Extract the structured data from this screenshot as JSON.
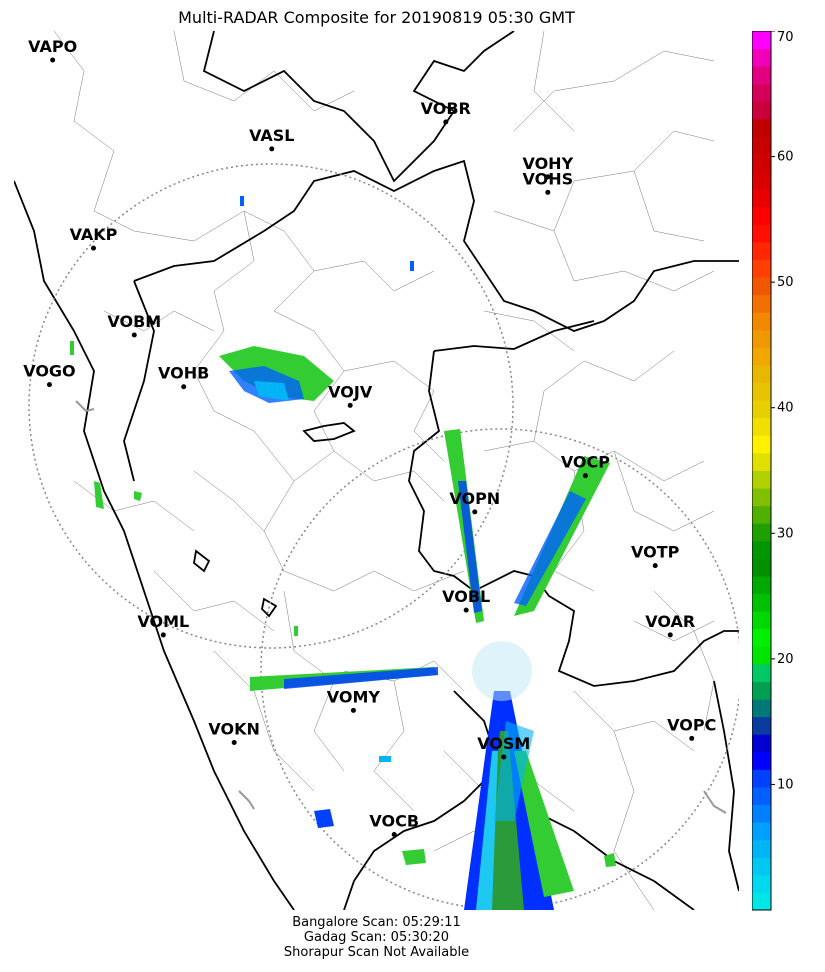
{
  "title": "Multi-RADAR Composite for 20190819 05:30 GMT",
  "stations": [
    {
      "id": "VAPO",
      "lon": 73.86,
      "lat": 18.52
    },
    {
      "id": "VASL",
      "lon": 75.9,
      "lat": 17.66
    },
    {
      "id": "VOBR",
      "lon": 77.52,
      "lat": 17.92
    },
    {
      "id": "VOHY",
      "lon": 78.47,
      "lat": 17.39
    },
    {
      "id": "VOHS",
      "lon": 78.47,
      "lat": 17.24
    },
    {
      "id": "VAKP",
      "lon": 74.24,
      "lat": 16.7
    },
    {
      "id": "VOBM",
      "lon": 74.62,
      "lat": 15.86
    },
    {
      "id": "VOGO",
      "lon": 73.83,
      "lat": 15.38
    },
    {
      "id": "VOHB",
      "lon": 75.08,
      "lat": 15.36
    },
    {
      "id": "VOJV",
      "lon": 76.63,
      "lat": 15.18
    },
    {
      "id": "VOCP",
      "lon": 78.82,
      "lat": 14.5
    },
    {
      "id": "VOPN",
      "lon": 77.79,
      "lat": 14.15
    },
    {
      "id": "VOTP",
      "lon": 79.47,
      "lat": 13.63
    },
    {
      "id": "VOBL",
      "lon": 77.71,
      "lat": 13.2
    },
    {
      "id": "VOAR",
      "lon": 79.61,
      "lat": 12.96
    },
    {
      "id": "VOML",
      "lon": 74.89,
      "lat": 12.96
    },
    {
      "id": "VOMY",
      "lon": 76.66,
      "lat": 12.23
    },
    {
      "id": "VOKN",
      "lon": 75.55,
      "lat": 11.92
    },
    {
      "id": "VOPC",
      "lon": 79.81,
      "lat": 11.96
    },
    {
      "id": "VOSM",
      "lon": 78.06,
      "lat": 11.78
    },
    {
      "id": "VOCB",
      "lon": 77.04,
      "lat": 11.03
    }
  ],
  "colorbar": {
    "min": 0,
    "max": 70,
    "ticks": [
      10,
      20,
      30,
      40,
      50,
      60,
      70
    ],
    "colors": [
      "#00e5e5",
      "#00d8ee",
      "#00c8f0",
      "#00b4f5",
      "#00a0ff",
      "#0080ff",
      "#0060ff",
      "#0040ff",
      "#0000ff",
      "#0000d0",
      "#0a3ca0",
      "#007878",
      "#00a050",
      "#00c864",
      "#00e400",
      "#00f000",
      "#00d800",
      "#00c000",
      "#00a800",
      "#009000",
      "#009600",
      "#20a000",
      "#50b000",
      "#80c000",
      "#b0d000",
      "#e0e000",
      "#fff000",
      "#f0e000",
      "#e8d000",
      "#e8c400",
      "#e8b800",
      "#f0a800",
      "#f09800",
      "#f08800",
      "#f07000",
      "#f05800",
      "#ff4000",
      "#ff2800",
      "#ff1000",
      "#ff0000",
      "#e80000",
      "#d80000",
      "#d00000",
      "#c80000",
      "#c00000",
      "#c8003c",
      "#d4005a",
      "#e00080",
      "#f000b8",
      "#ff00ff"
    ]
  },
  "footer": [
    "Bangalore Scan: 05:29:11",
    "Gadag Scan: 05:30:20",
    "Shorapur Scan Not Available"
  ]
}
